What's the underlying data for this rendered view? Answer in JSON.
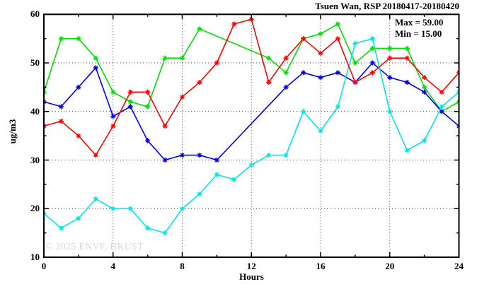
{
  "title": "Tsuen Wan, RSP 20180417-20180420",
  "legend": {
    "max_label": "Max = 59.00",
    "min_label": "Min = 15.00"
  },
  "watermark": "© 2025 ENVF, HKUST",
  "colors": {
    "frame": "#000000",
    "grid": "#444444",
    "watermark": "#d7d7d7"
  },
  "chart_data": {
    "type": "line",
    "title": "Tsuen Wan, RSP 20180417-20180420",
    "xlabel": "Hours",
    "ylabel": "ug/m3",
    "xlim": [
      0,
      24
    ],
    "ylim": [
      10,
      60
    ],
    "x": [
      0,
      1,
      2,
      3,
      4,
      5,
      6,
      7,
      8,
      9,
      10,
      11,
      12,
      13,
      14,
      15,
      16,
      17,
      18,
      19,
      20,
      21,
      22,
      23,
      24
    ],
    "x_major_ticks": [
      0,
      4,
      8,
      12,
      16,
      20,
      24
    ],
    "x_minor_ticks": [
      2,
      6,
      10,
      14,
      18,
      22
    ],
    "y_major_ticks": [
      10,
      20,
      30,
      40,
      50,
      60
    ],
    "y_minor_ticks": [
      15,
      25,
      35,
      45,
      55
    ],
    "grid_x": [
      4,
      8,
      12,
      16,
      20
    ],
    "grid_y": [
      20,
      30,
      40,
      50
    ],
    "grid_on": true,
    "legend_position": "top-right-inside",
    "marker": "asterisk",
    "max": 59.0,
    "min": 15.0,
    "series": [
      {
        "name": "series-green",
        "color": "#00dd00",
        "values": [
          44,
          55,
          55,
          51,
          44,
          42,
          41,
          51,
          51,
          57,
          null,
          null,
          null,
          51,
          48,
          55,
          56,
          58,
          50,
          53,
          53,
          53,
          45,
          40,
          42
        ]
      },
      {
        "name": "series-blue",
        "color": "#0000ee",
        "values": [
          42,
          41,
          45,
          49,
          39,
          41,
          34,
          30,
          31,
          31,
          30,
          null,
          null,
          null,
          45,
          48,
          47,
          48,
          46,
          50,
          47,
          46,
          44,
          40,
          37
        ]
      },
      {
        "name": "series-cyan",
        "color": "#00e5e5",
        "values": [
          19,
          16,
          18,
          22,
          20,
          20,
          16,
          15,
          20,
          23,
          27,
          26,
          29,
          31,
          31,
          40,
          36,
          41,
          54,
          55,
          40,
          32,
          34,
          41,
          44
        ]
      },
      {
        "name": "series-red",
        "color": "#ff0000",
        "values": [
          37,
          38,
          35,
          31,
          37,
          44,
          44,
          37,
          43,
          46,
          50,
          58,
          59,
          46,
          51,
          55,
          52,
          55,
          46,
          48,
          51,
          51,
          47,
          44,
          48
        ]
      }
    ]
  }
}
